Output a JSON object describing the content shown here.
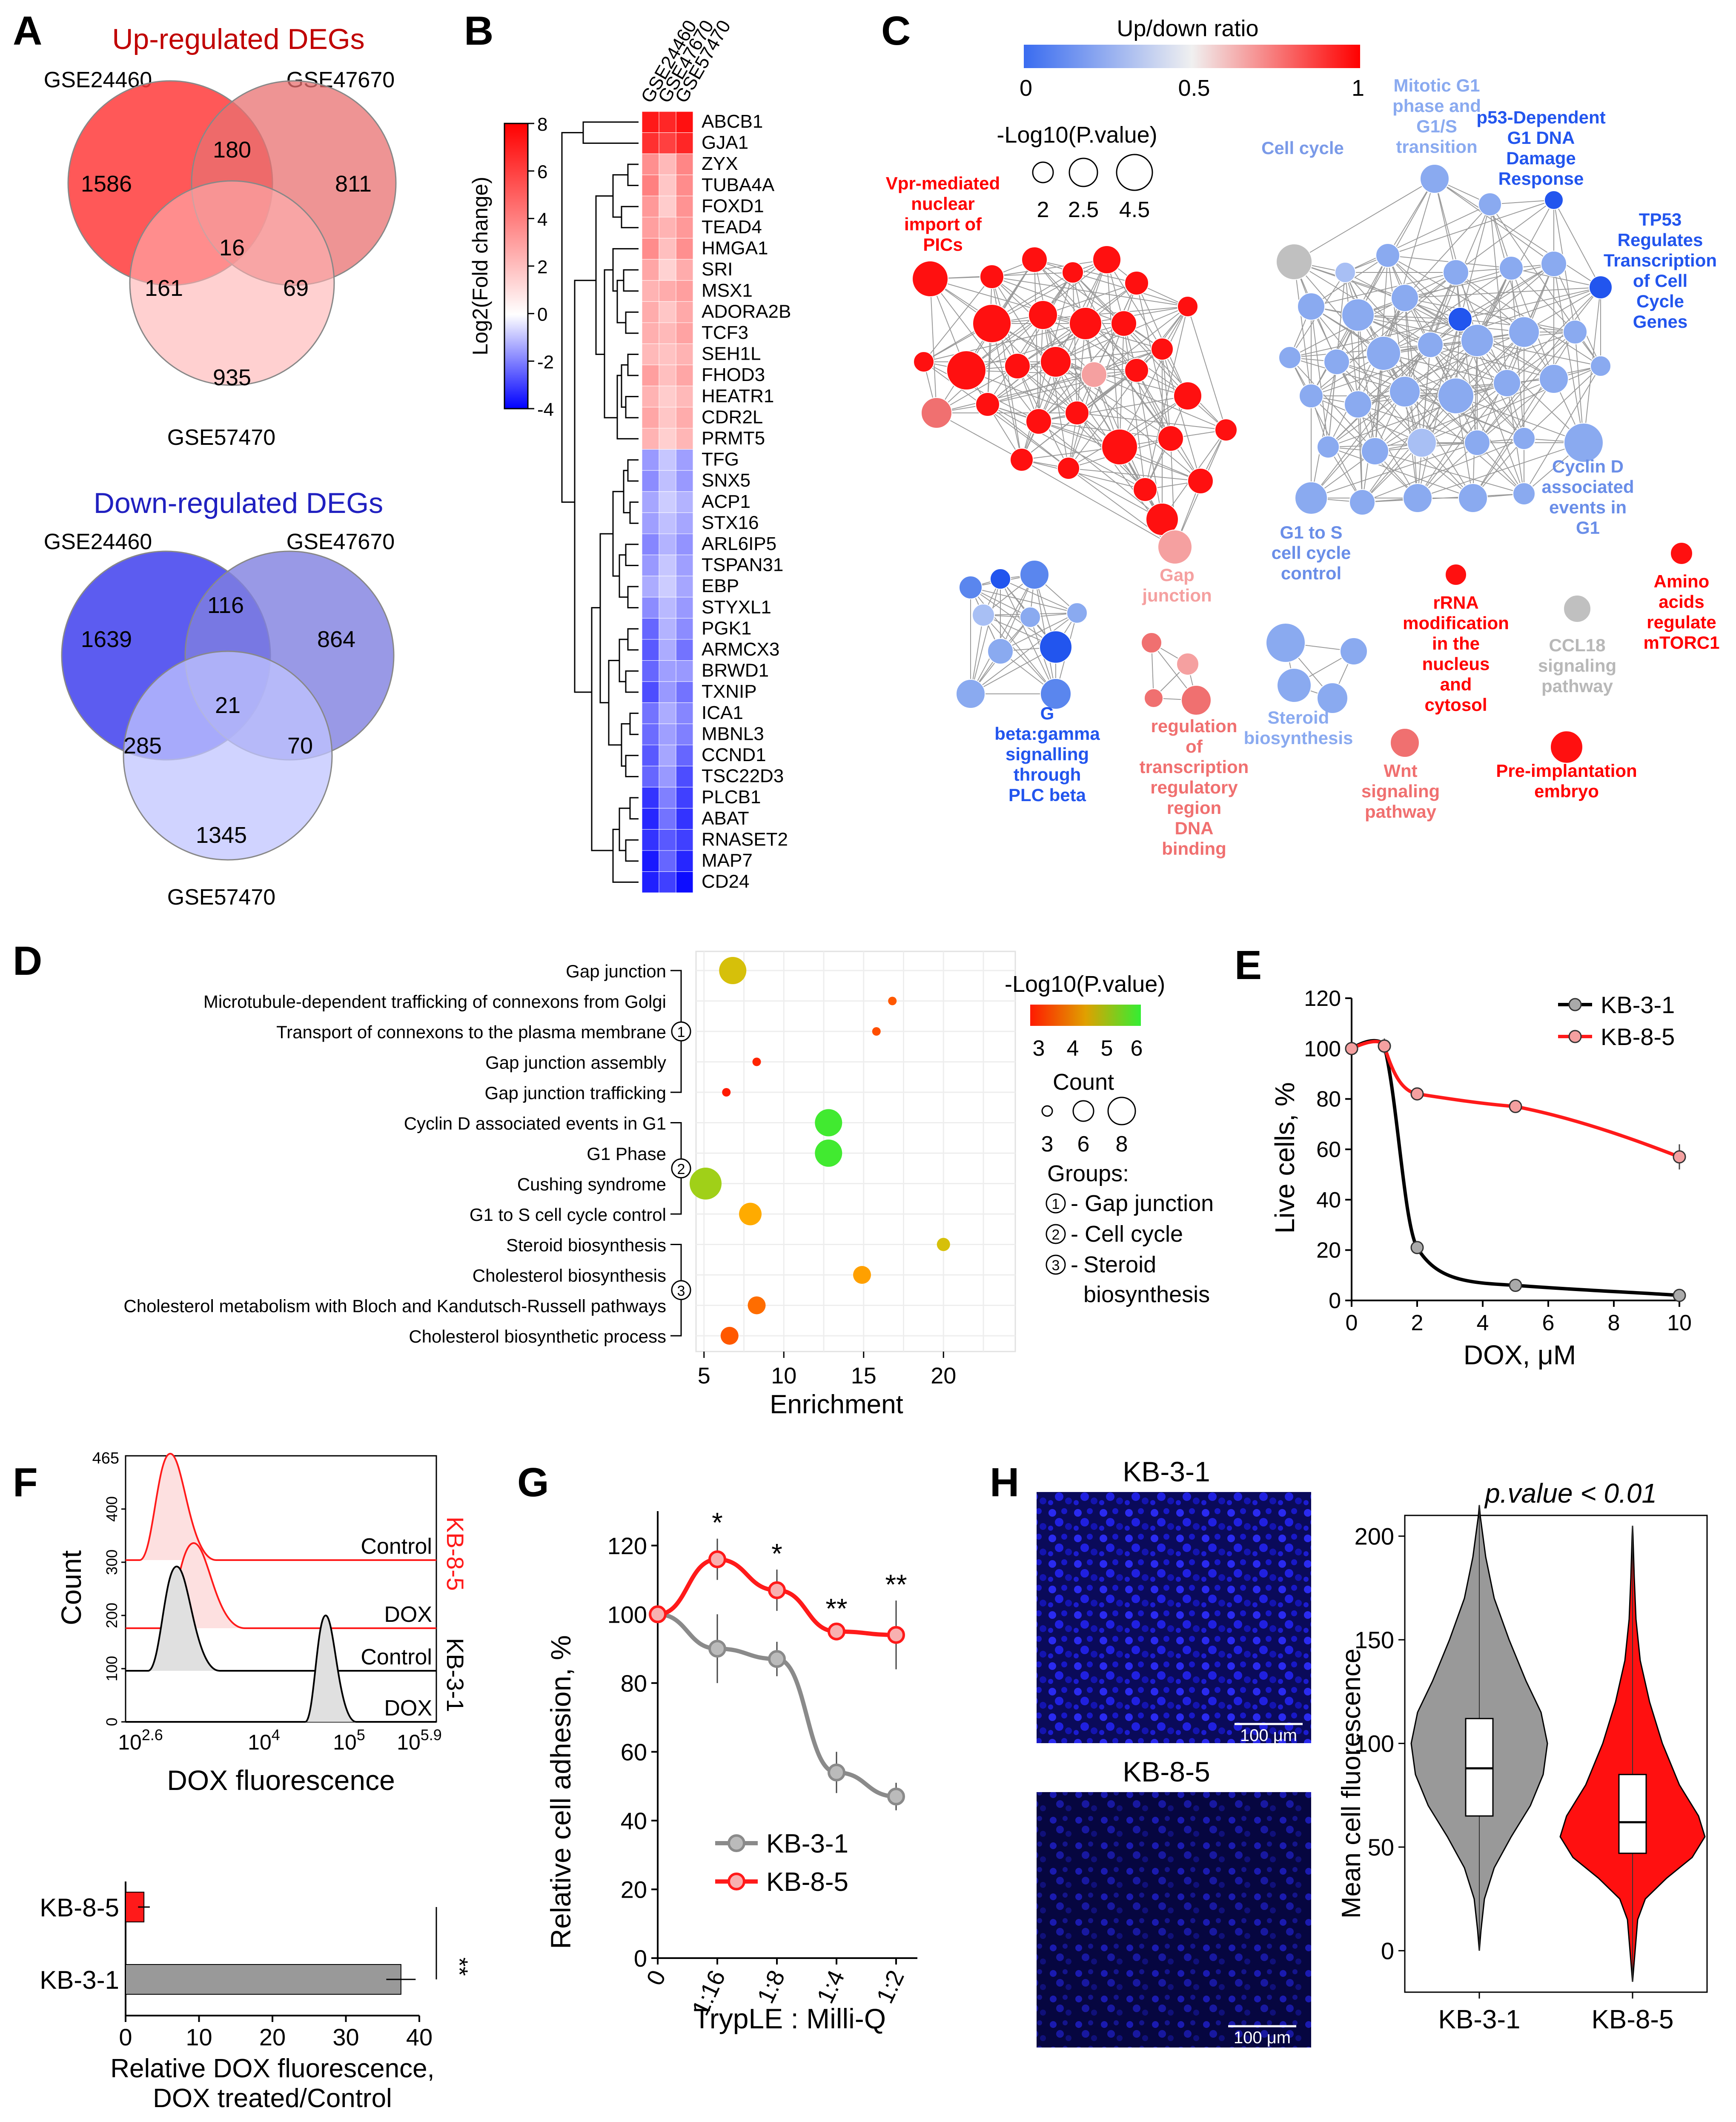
{
  "panels": {
    "A": "A",
    "B": "B",
    "C": "C",
    "D": "D",
    "E": "E",
    "F": "F",
    "G": "G",
    "H": "H"
  },
  "colors": {
    "red": "#ff1a1a",
    "blue": "#4040ff",
    "gray": "#909090",
    "green": "#33ee33",
    "orange": "#ff8a00"
  },
  "panelA": {
    "up": {
      "title": "Up-regulated DEGs",
      "set1": "GSE24460",
      "set2": "GSE47670",
      "set3": "GSE57470",
      "counts": {
        "only1": "1586",
        "c12": "180",
        "only2": "811",
        "all": "16",
        "c13": "161",
        "c23": "69",
        "only3": "935"
      }
    },
    "down": {
      "title": "Down-regulated DEGs",
      "set1": "GSE24460",
      "set2": "GSE47670",
      "set3": "GSE57470",
      "counts": {
        "only1": "1639",
        "c12": "116",
        "only2": "864",
        "all": "21",
        "c13": "285",
        "c23": "70",
        "only3": "1345"
      }
    }
  },
  "panelB": {
    "columns": [
      "GSE24460",
      "GSE47670",
      "GSE57470"
    ],
    "colorbar_label": "Log2(Fold change)",
    "colorbar_ticks": [
      "8",
      "6",
      "4",
      "2",
      "0",
      "-2",
      "-4"
    ],
    "genes": [
      {
        "name": "ABCB1",
        "values": [
          7.2,
          6.8,
          7.5
        ]
      },
      {
        "name": "GJA1",
        "values": [
          6.5,
          6.0,
          6.8
        ]
      },
      {
        "name": "ZYX",
        "values": [
          3.5,
          2.2,
          3.8
        ]
      },
      {
        "name": "TUBA4A",
        "values": [
          4.0,
          1.8,
          3.6
        ]
      },
      {
        "name": "FOXD1",
        "values": [
          3.2,
          1.6,
          3.4
        ]
      },
      {
        "name": "TEAD4",
        "values": [
          3.0,
          2.4,
          3.2
        ]
      },
      {
        "name": "HMGA1",
        "values": [
          3.6,
          2.0,
          3.5
        ]
      },
      {
        "name": "SRI",
        "values": [
          2.8,
          1.4,
          2.6
        ]
      },
      {
        "name": "MSX1",
        "values": [
          2.4,
          2.6,
          3.0
        ]
      },
      {
        "name": "ADORA2B",
        "values": [
          2.6,
          1.8,
          2.7
        ]
      },
      {
        "name": "TCF3",
        "values": [
          2.5,
          2.2,
          2.9
        ]
      },
      {
        "name": "SEH1L",
        "values": [
          2.2,
          1.9,
          2.4
        ]
      },
      {
        "name": "FHOD3",
        "values": [
          3.0,
          2.0,
          2.8
        ]
      },
      {
        "name": "HEATR1",
        "values": [
          2.4,
          1.6,
          2.2
        ]
      },
      {
        "name": "CDR2L",
        "values": [
          2.8,
          1.8,
          2.6
        ]
      },
      {
        "name": "PRMT5",
        "values": [
          2.4,
          1.5,
          2.3
        ]
      },
      {
        "name": "TFG",
        "values": [
          -1.6,
          -0.9,
          -1.5
        ]
      },
      {
        "name": "SNX5",
        "values": [
          -1.8,
          -1.0,
          -1.6
        ]
      },
      {
        "name": "ACP1",
        "values": [
          -1.4,
          -0.8,
          -1.2
        ]
      },
      {
        "name": "STX16",
        "values": [
          -1.5,
          -1.0,
          -1.4
        ]
      },
      {
        "name": "ARL6IP5",
        "values": [
          -1.9,
          -1.2,
          -1.7
        ]
      },
      {
        "name": "TSPAN31",
        "values": [
          -1.6,
          -0.9,
          -1.5
        ]
      },
      {
        "name": "EBP",
        "values": [
          -1.3,
          -0.8,
          -1.4
        ]
      },
      {
        "name": "STYXL1",
        "values": [
          -1.8,
          -1.1,
          -1.6
        ]
      },
      {
        "name": "PGK1",
        "values": [
          -2.4,
          -1.2,
          -1.8
        ]
      },
      {
        "name": "ARMCX3",
        "values": [
          -2.6,
          -1.3,
          -2.2
        ]
      },
      {
        "name": "BRWD1",
        "values": [
          -2.4,
          -1.5,
          -1.6
        ]
      },
      {
        "name": "TXNIP",
        "values": [
          -2.8,
          -1.6,
          -2.2
        ]
      },
      {
        "name": "ICA1",
        "values": [
          -2.2,
          -1.3,
          -1.9
        ]
      },
      {
        "name": "MBNL3",
        "values": [
          -2.3,
          -1.5,
          -2.0
        ]
      },
      {
        "name": "CCND1",
        "values": [
          -2.6,
          -1.4,
          -2.4
        ]
      },
      {
        "name": "TSC22D3",
        "values": [
          -2.4,
          -1.6,
          -2.8
        ]
      },
      {
        "name": "PLCB1",
        "values": [
          -3.2,
          -2.0,
          -3.0
        ]
      },
      {
        "name": "ABAT",
        "values": [
          -3.4,
          -2.2,
          -3.2
        ]
      },
      {
        "name": "RNASET2",
        "values": [
          -3.2,
          -2.6,
          -3.0
        ]
      },
      {
        "name": "MAP7",
        "values": [
          -3.6,
          -2.4,
          -3.4
        ]
      },
      {
        "name": "CD24",
        "values": [
          -3.5,
          -3.0,
          -3.8
        ]
      }
    ]
  },
  "panelC": {
    "colorbar_title": "Up/down ratio",
    "colorbar_ticks": [
      "0",
      "0.5",
      "1"
    ],
    "size_title": "-Log10(P.value)",
    "size_ticks": [
      "2",
      "2.5",
      "4.5"
    ],
    "labels": {
      "vpr": [
        "Vpr-mediated",
        "nuclear",
        "import of",
        "PICs"
      ],
      "gap": [
        "Gap",
        "junction"
      ],
      "cellcycle": [
        "Cell cycle"
      ],
      "mitotic": [
        "Mitotic G1",
        "phase and",
        "G1/S",
        "transition"
      ],
      "p53": [
        "p53-Dependent",
        "G1 DNA",
        "Damage",
        "Response"
      ],
      "tp53": [
        "TP53",
        "Regulates",
        "Transcription",
        "of Cell",
        "Cycle",
        "Genes"
      ],
      "cyclind": [
        "Cyclin D",
        "associated",
        "events in",
        "G1"
      ],
      "g1s": [
        "G1 to S",
        "cell cycle",
        "control"
      ],
      "rrna": [
        "rRNA",
        "modification",
        "in the",
        "nucleus",
        "and",
        "cytosol"
      ],
      "ccl18": [
        "CCL18",
        "signaling",
        "pathway"
      ],
      "amino": [
        "Amino",
        "acids",
        "regulate",
        "mTORC1"
      ],
      "gbeta": [
        "G",
        "beta:gamma",
        "signalling",
        "through",
        "PLC beta"
      ],
      "regulation": [
        "regulation",
        "of",
        "transcription",
        "regulatory",
        "region",
        "DNA",
        "binding"
      ],
      "steroid": [
        "Steroid",
        "biosynthesis"
      ],
      "wnt": [
        "Wnt",
        "signaling",
        "pathway"
      ],
      "preimpl": [
        "Pre-implantation",
        "embryo"
      ]
    }
  },
  "panelD": {
    "chart_data": {
      "type": "scatter",
      "xlabel": "Enrichment",
      "xlim": [
        4.5,
        24.5
      ],
      "xticks": [
        "5",
        "10",
        "15",
        "20"
      ],
      "categories": [
        "Gap junction",
        "Microtubule-dependent trafficking of connexons from Golgi",
        "Transport of connexons to the plasma membrane",
        "Gap junction assembly",
        "Gap junction trafficking",
        "Cyclin D associated events in G1",
        "G1 Phase",
        "Cushing syndrome",
        "G1 to S cell cycle control",
        "Steroid biosynthesis",
        "Cholesterol biosynthesis",
        "Cholesterol metabolism with Bloch and Kandutsch-Russell pathways",
        "Cholesterol biosynthetic process"
      ],
      "points": [
        {
          "x": 6.8,
          "count": 7,
          "logp": 4.8
        },
        {
          "x": 16.8,
          "count": 3,
          "logp": 3.6
        },
        {
          "x": 15.8,
          "count": 3,
          "logp": 3.5
        },
        {
          "x": 8.3,
          "count": 3,
          "logp": 3.1
        },
        {
          "x": 6.4,
          "count": 3,
          "logp": 3.0
        },
        {
          "x": 12.8,
          "count": 7,
          "logp": 5.9
        },
        {
          "x": 12.8,
          "count": 7,
          "logp": 5.9
        },
        {
          "x": 5.1,
          "count": 8,
          "logp": 5.2
        },
        {
          "x": 7.9,
          "count": 6,
          "logp": 4.4
        },
        {
          "x": 20.0,
          "count": 4,
          "logp": 4.8
        },
        {
          "x": 14.9,
          "count": 5,
          "logp": 4.3
        },
        {
          "x": 8.3,
          "count": 5,
          "logp": 3.8
        },
        {
          "x": 6.6,
          "count": 5,
          "logp": 3.6
        }
      ],
      "groups": [
        {
          "id": "1",
          "name": "Gap junction"
        },
        {
          "id": "2",
          "name": "Cell cycle"
        },
        {
          "id": "3",
          "name": "Steroid biosynthesis"
        }
      ],
      "legend_color_title": "-Log10(P.value)",
      "legend_color_ticks": [
        "3",
        "4",
        "5",
        "6"
      ],
      "legend_count_title": "Count",
      "legend_count_ticks": [
        "3",
        "6",
        "8"
      ],
      "legend_groups_title": "Groups:"
    }
  },
  "panelE": {
    "chart_data": {
      "type": "line",
      "xlabel": "DOX, μM",
      "ylabel": "Live cells, %",
      "xlim": [
        0,
        10
      ],
      "ylim": [
        0,
        120
      ],
      "xticks": [
        0,
        2,
        4,
        6,
        8,
        10
      ],
      "yticks": [
        0,
        20,
        40,
        60,
        80,
        100,
        120
      ],
      "series": [
        {
          "name": "KB-3-1",
          "color": "#000000",
          "x": [
            0,
            1,
            2,
            5,
            10
          ],
          "y": [
            100,
            101,
            21,
            6,
            2
          ],
          "err": [
            1,
            2,
            1,
            1,
            1
          ]
        },
        {
          "name": "KB-8-5",
          "color": "#ff1a1a",
          "x": [
            0,
            1,
            2,
            5,
            10
          ],
          "y": [
            100,
            101,
            82,
            77,
            57
          ],
          "err": [
            1,
            3,
            1,
            1,
            5
          ]
        }
      ]
    }
  },
  "panelF": {
    "histogram": {
      "ylabel": "Count",
      "ytop": "465",
      "xlabel": "DOX fluorescence",
      "xtick_left_base": "10",
      "xtick_left_exp": "2.6",
      "xtick_mid1_base": "10",
      "xtick_mid1_exp": "4",
      "xtick_mid2_base": "10",
      "xtick_mid2_exp": "5",
      "xtick_right_base": "10",
      "xtick_right_exp": "5.9",
      "yticks": [
        "0",
        "100",
        "200",
        "300",
        "400"
      ],
      "traces": [
        "Control",
        "DOX",
        "Control",
        "DOX"
      ],
      "group_kb85": "KB-8-5",
      "group_kb31": "KB-3-1"
    },
    "bar": {
      "chart_data": {
        "type": "bar",
        "categories": [
          "KB-8-5",
          "KB-3-1"
        ],
        "values": [
          2.5,
          37.5
        ],
        "errors": [
          0.8,
          2.0
        ],
        "xlim": [
          0,
          40
        ],
        "xticks": [
          "0",
          "10",
          "20",
          "30",
          "40"
        ],
        "xlabel": [
          "Relative DOX fluorescence,",
          "DOX treated/Control"
        ],
        "significance": "**"
      }
    }
  },
  "panelG": {
    "chart_data": {
      "type": "line",
      "xlabel": "TrypLE : Milli-Q",
      "ylabel": "Relative cell adhesion, %",
      "categories": [
        "0",
        "1:16",
        "1:8",
        "1:4",
        "1:2"
      ],
      "ylim": [
        0,
        130
      ],
      "yticks": [
        0,
        20,
        40,
        60,
        80,
        100,
        120
      ],
      "series": [
        {
          "name": "KB-3-1",
          "color": "#8a8a8a",
          "values": [
            100,
            90,
            87,
            54,
            47
          ],
          "err": [
            2,
            10,
            5,
            6,
            4
          ]
        },
        {
          "name": "KB-8-5",
          "color": "#ff1a1a",
          "values": [
            100,
            116,
            107,
            95,
            94
          ],
          "err": [
            2,
            6,
            6,
            2,
            10
          ]
        }
      ],
      "significance": [
        "",
        "*",
        "*",
        "**",
        "**"
      ]
    }
  },
  "panelH": {
    "image_titles": [
      "KB-3-1",
      "KB-8-5"
    ],
    "scalebar": "100 μm",
    "chart_data": {
      "type": "violin",
      "title": "p.value < 0.01",
      "ylabel": "Mean cell fluorescence",
      "categories": [
        "KB-3-1",
        "KB-8-5"
      ],
      "ylim": [
        0,
        210
      ],
      "yticks": [
        0,
        50,
        100,
        150,
        200
      ],
      "median": [
        88,
        62
      ],
      "q1": [
        65,
        47
      ],
      "q3": [
        112,
        85
      ]
    }
  }
}
